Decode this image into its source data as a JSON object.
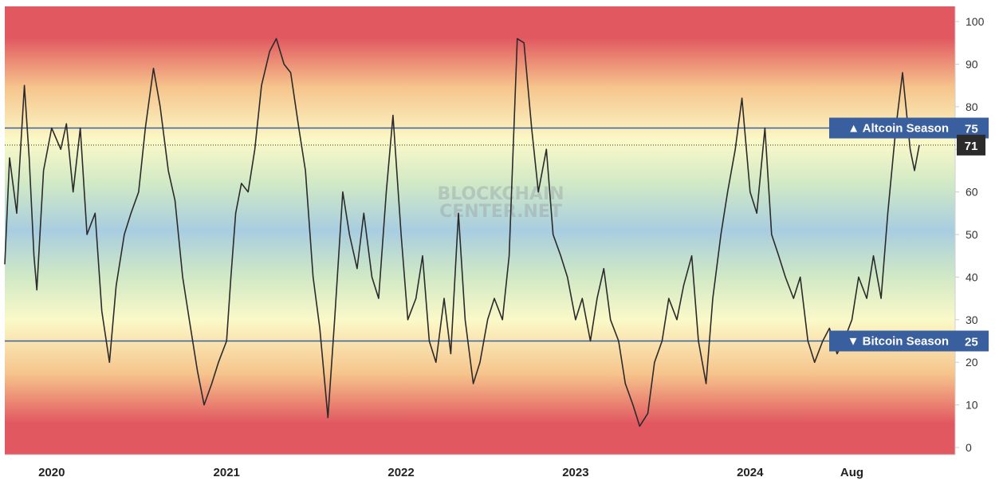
{
  "chart_data": {
    "type": "line",
    "title": "",
    "xlabel": "",
    "ylabel": "",
    "ylim": [
      0,
      100
    ],
    "y_ticks": [
      0,
      10,
      20,
      30,
      40,
      50,
      60,
      70,
      80,
      90,
      100
    ],
    "x_range": [
      "2019-09-25",
      "2025-03-05"
    ],
    "x_ticks": [
      {
        "label": "2020",
        "date": "2020-01-01"
      },
      {
        "label": "2021",
        "date": "2021-01-01"
      },
      {
        "label": "2022",
        "date": "2022-01-01"
      },
      {
        "label": "2023",
        "date": "2023-01-01"
      },
      {
        "label": "2024",
        "date": "2024-01-01"
      },
      {
        "label": "Aug",
        "date": "2024-08-01"
      }
    ],
    "grid": false,
    "background": "vertical gradient bands: red at 0 and 100, yellow near 25 and 75, blue-green near 50",
    "colors": {
      "line": "#2b2b2b",
      "threshold_line": "#3a5f9e",
      "tag": "#3a5f9e",
      "last_value_tag": "#2b2b2b",
      "band_red": "#e15860",
      "band_orange": "#f6c48c",
      "band_yellow": "#fbf9c8",
      "band_green": "#cfe8c6",
      "band_blue": "#a8cde0"
    },
    "thresholds": [
      {
        "value": 75,
        "label": "▲ Altcoin Season",
        "value_label": "75"
      },
      {
        "value": 25,
        "label": "▼ Bitcoin Season",
        "value_label": "25"
      }
    ],
    "last_value": 71,
    "watermark": [
      "BLOCKCHAIN",
      "CENTER.NET"
    ],
    "series": [
      {
        "points": [
          [
            "2019-09-25",
            43
          ],
          [
            "2019-10-05",
            68
          ],
          [
            "2019-10-20",
            55
          ],
          [
            "2019-11-05",
            85
          ],
          [
            "2019-11-15",
            68
          ],
          [
            "2019-11-25",
            45
          ],
          [
            "2019-12-01",
            37
          ],
          [
            "2019-12-15",
            65
          ],
          [
            "2020-01-01",
            75
          ],
          [
            "2020-01-20",
            70
          ],
          [
            "2020-02-01",
            76
          ],
          [
            "2020-02-15",
            60
          ],
          [
            "2020-03-01",
            75
          ],
          [
            "2020-03-15",
            50
          ],
          [
            "2020-04-01",
            55
          ],
          [
            "2020-04-15",
            32
          ],
          [
            "2020-05-01",
            20
          ],
          [
            "2020-05-15",
            38
          ],
          [
            "2020-06-01",
            50
          ],
          [
            "2020-06-15",
            55
          ],
          [
            "2020-07-01",
            60
          ],
          [
            "2020-07-15",
            75
          ],
          [
            "2020-08-01",
            89
          ],
          [
            "2020-08-15",
            80
          ],
          [
            "2020-09-01",
            65
          ],
          [
            "2020-09-15",
            58
          ],
          [
            "2020-10-01",
            40
          ],
          [
            "2020-10-15",
            30
          ],
          [
            "2020-11-01",
            18
          ],
          [
            "2020-11-15",
            10
          ],
          [
            "2020-12-01",
            15
          ],
          [
            "2020-12-15",
            20
          ],
          [
            "2021-01-01",
            25
          ],
          [
            "2021-01-10",
            40
          ],
          [
            "2021-01-20",
            55
          ],
          [
            "2021-02-01",
            62
          ],
          [
            "2021-02-15",
            60
          ],
          [
            "2021-03-01",
            70
          ],
          [
            "2021-03-15",
            85
          ],
          [
            "2021-04-01",
            93
          ],
          [
            "2021-04-15",
            96
          ],
          [
            "2021-05-01",
            90
          ],
          [
            "2021-05-15",
            88
          ],
          [
            "2021-06-01",
            75
          ],
          [
            "2021-06-15",
            65
          ],
          [
            "2021-07-01",
            40
          ],
          [
            "2021-07-15",
            28
          ],
          [
            "2021-08-01",
            7
          ],
          [
            "2021-08-15",
            30
          ],
          [
            "2021-09-01",
            60
          ],
          [
            "2021-09-15",
            50
          ],
          [
            "2021-10-01",
            42
          ],
          [
            "2021-10-15",
            55
          ],
          [
            "2021-11-01",
            40
          ],
          [
            "2021-11-15",
            35
          ],
          [
            "2021-12-01",
            60
          ],
          [
            "2021-12-15",
            78
          ],
          [
            "2022-01-01",
            50
          ],
          [
            "2022-01-15",
            30
          ],
          [
            "2022-02-01",
            35
          ],
          [
            "2022-02-15",
            45
          ],
          [
            "2022-03-01",
            25
          ],
          [
            "2022-03-15",
            20
          ],
          [
            "2022-04-01",
            35
          ],
          [
            "2022-04-15",
            22
          ],
          [
            "2022-05-01",
            55
          ],
          [
            "2022-05-15",
            30
          ],
          [
            "2022-06-01",
            15
          ],
          [
            "2022-06-15",
            20
          ],
          [
            "2022-07-01",
            30
          ],
          [
            "2022-07-15",
            35
          ],
          [
            "2022-08-01",
            30
          ],
          [
            "2022-08-15",
            45
          ],
          [
            "2022-09-01",
            96
          ],
          [
            "2022-09-15",
            95
          ],
          [
            "2022-10-01",
            75
          ],
          [
            "2022-10-15",
            60
          ],
          [
            "2022-11-01",
            70
          ],
          [
            "2022-11-15",
            50
          ],
          [
            "2022-12-01",
            45
          ],
          [
            "2022-12-15",
            40
          ],
          [
            "2023-01-01",
            30
          ],
          [
            "2023-01-15",
            35
          ],
          [
            "2023-02-01",
            25
          ],
          [
            "2023-02-15",
            35
          ],
          [
            "2023-03-01",
            42
          ],
          [
            "2023-03-15",
            30
          ],
          [
            "2023-04-01",
            25
          ],
          [
            "2023-04-15",
            15
          ],
          [
            "2023-05-01",
            10
          ],
          [
            "2023-05-15",
            5
          ],
          [
            "2023-06-01",
            8
          ],
          [
            "2023-06-15",
            20
          ],
          [
            "2023-07-01",
            25
          ],
          [
            "2023-07-15",
            35
          ],
          [
            "2023-08-01",
            30
          ],
          [
            "2023-08-15",
            38
          ],
          [
            "2023-09-01",
            45
          ],
          [
            "2023-09-15",
            25
          ],
          [
            "2023-10-01",
            15
          ],
          [
            "2023-10-15",
            35
          ],
          [
            "2023-11-01",
            50
          ],
          [
            "2023-11-15",
            60
          ],
          [
            "2023-12-01",
            70
          ],
          [
            "2023-12-15",
            82
          ],
          [
            "2024-01-01",
            60
          ],
          [
            "2024-01-15",
            55
          ],
          [
            "2024-02-01",
            75
          ],
          [
            "2024-02-15",
            50
          ],
          [
            "2024-03-01",
            45
          ],
          [
            "2024-03-15",
            40
          ],
          [
            "2024-04-01",
            35
          ],
          [
            "2024-04-15",
            40
          ],
          [
            "2024-05-01",
            25
          ],
          [
            "2024-05-15",
            20
          ],
          [
            "2024-06-01",
            25
          ],
          [
            "2024-06-15",
            28
          ],
          [
            "2024-07-01",
            22
          ],
          [
            "2024-07-15",
            25
          ],
          [
            "2024-08-01",
            30
          ],
          [
            "2024-08-15",
            40
          ],
          [
            "2024-09-01",
            35
          ],
          [
            "2024-09-15",
            45
          ],
          [
            "2024-10-01",
            35
          ],
          [
            "2024-10-15",
            55
          ],
          [
            "2024-11-01",
            75
          ],
          [
            "2024-11-15",
            88
          ],
          [
            "2024-12-01",
            70
          ],
          [
            "2024-12-10",
            65
          ],
          [
            "2024-12-20",
            71
          ]
        ]
      }
    ]
  }
}
